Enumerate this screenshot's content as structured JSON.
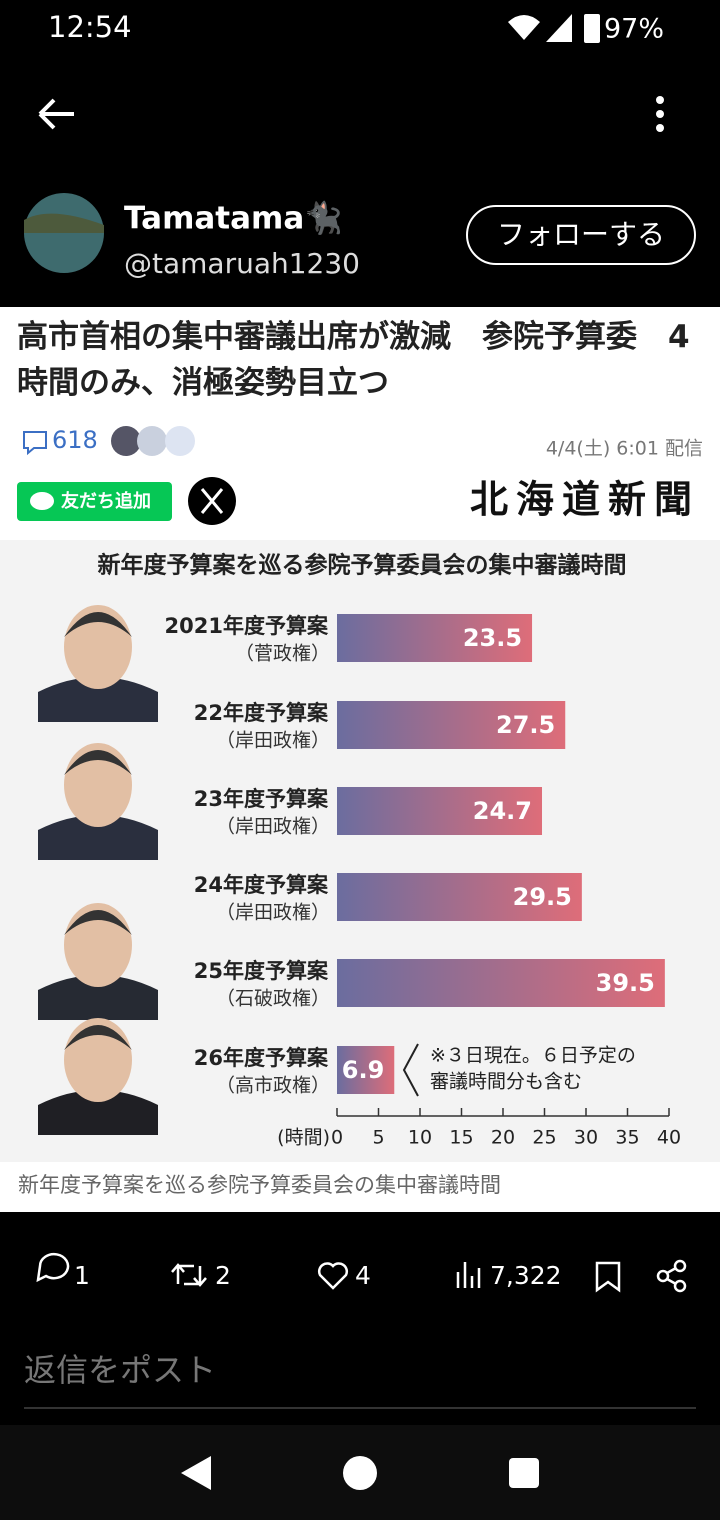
{
  "status_bar": {
    "time": "12:54",
    "battery": "97%"
  },
  "post": {
    "user_name": "Tamatama🐈‍⬛",
    "handle": "@tamaruah1230",
    "follow_button": "フォローする"
  },
  "article": {
    "title": "高市首相の集中審議出席が激減　参院予算委　4時間のみ、消極姿勢目立つ",
    "comment_count": 618,
    "date": "4/4(土) 6:01 配信",
    "line_button": "友だち追加",
    "source": "北海道新聞",
    "caption": "新年度予算案を巡る参院予算委員会の集中審議時間"
  },
  "chart_data": {
    "type": "hbar",
    "title": "新年度予算案を巡る参院予算委員会の集中審議時間",
    "categories": [
      "2021年度予算案",
      "22年度予算案",
      "23年度予算案",
      "24年度予算案",
      "25年度予算案",
      "26年度予算案"
    ],
    "category_notes": [
      "（菅政権）",
      "（岸田政権）",
      "（岸田政権）",
      "（岸田政権）",
      "（石破政権）",
      "（高市政権）"
    ],
    "values": [
      23.5,
      27.5,
      24.7,
      29.5,
      39.5,
      6.9
    ],
    "colors": [
      "#6b6d9f",
      "#de6d79"
    ],
    "annotation": [
      "※３日現在。６日予定の",
      "審議時間分も含む"
    ],
    "x_label": "(時間)",
    "xlim": [
      0,
      40
    ],
    "xticks": [
      0,
      5,
      10,
      15,
      20,
      25,
      30,
      35,
      40
    ]
  },
  "actions": {
    "replies": 1,
    "reposts": 2,
    "likes": 4,
    "views": "7,322"
  },
  "reply_placeholder": "返信をポスト"
}
